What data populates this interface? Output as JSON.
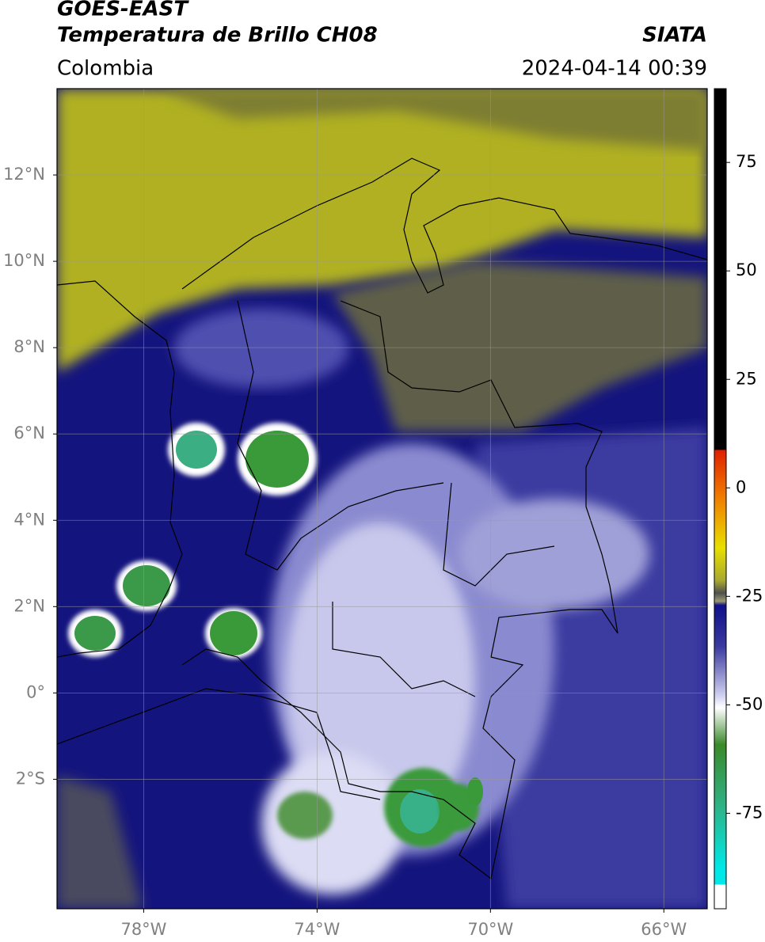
{
  "header": {
    "title": "GOES-EAST",
    "subtitle": "Temperatura de Brillo CH08",
    "source": "SIATA",
    "region": "Colombia",
    "datetime": "2024-04-14 00:39"
  },
  "map": {
    "xlim": [
      -80,
      -65
    ],
    "ylim": [
      -5,
      14
    ],
    "xticks": [
      {
        "value": -78,
        "label": "78°W"
      },
      {
        "value": -74,
        "label": "74°W"
      },
      {
        "value": -70,
        "label": "70°W"
      },
      {
        "value": -66,
        "label": "66°W"
      }
    ],
    "yticks": [
      {
        "value": 12,
        "label": "12°N"
      },
      {
        "value": 10,
        "label": "10°N"
      },
      {
        "value": 8,
        "label": "8°N"
      },
      {
        "value": 6,
        "label": "6°N"
      },
      {
        "value": 4,
        "label": "4°N"
      },
      {
        "value": 2,
        "label": "2°N"
      },
      {
        "value": 0,
        "label": "0°"
      },
      {
        "value": -2,
        "label": "2°S"
      }
    ]
  },
  "colorbar": {
    "lim": [
      -97,
      92
    ],
    "ticks": [
      75,
      50,
      25,
      0,
      -25,
      -50,
      -75
    ]
  }
}
